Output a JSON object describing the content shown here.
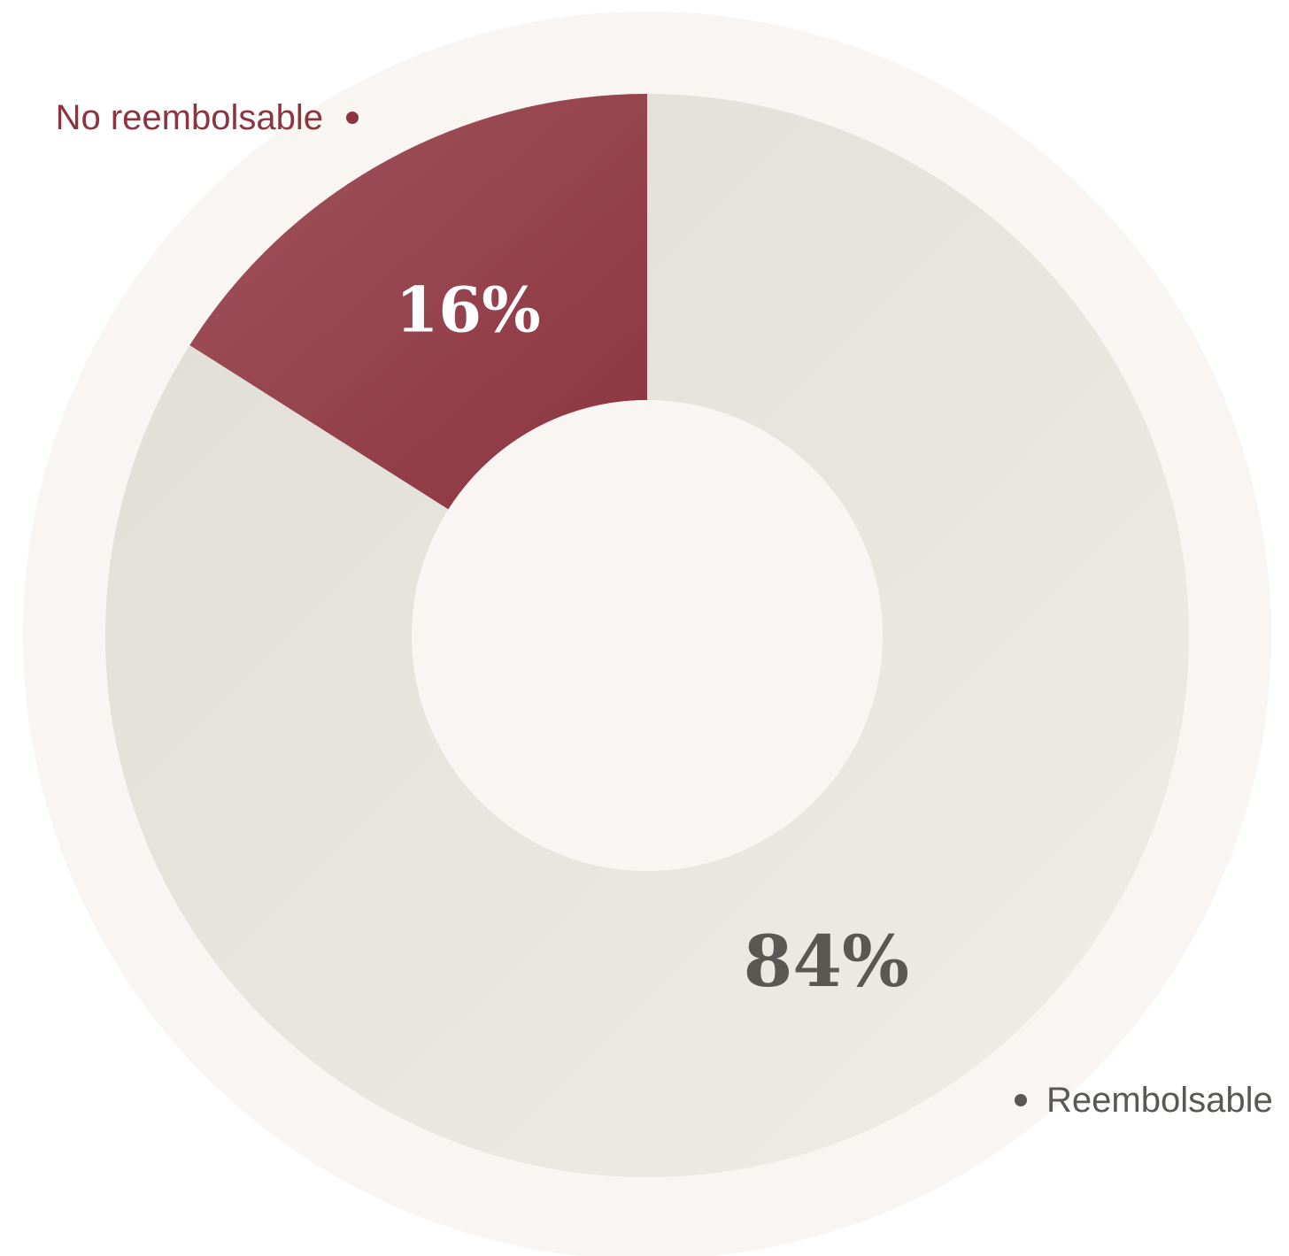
{
  "chart_data": {
    "type": "pie",
    "variant": "donut",
    "title": "",
    "slices": [
      {
        "label": "No reembolsable",
        "value": 16,
        "display": "16%",
        "color": "#8c3440",
        "color_light": "#a0545c",
        "text_color": "#ffffff",
        "legend_color": "#8c3440"
      },
      {
        "label": "Reembolsable",
        "value": 84,
        "display": "84%",
        "color": "#e0ddd6",
        "color_light": "#f0ece8",
        "text_color": "#5a5855",
        "legend_color": "#5a5855"
      }
    ],
    "start_angle_deg": 0,
    "direction": "counterclockwise",
    "background_ring_color": "#f8f5f2",
    "hole_color": "#f8f5f2",
    "legend_placement": "outside, at slice edges"
  }
}
